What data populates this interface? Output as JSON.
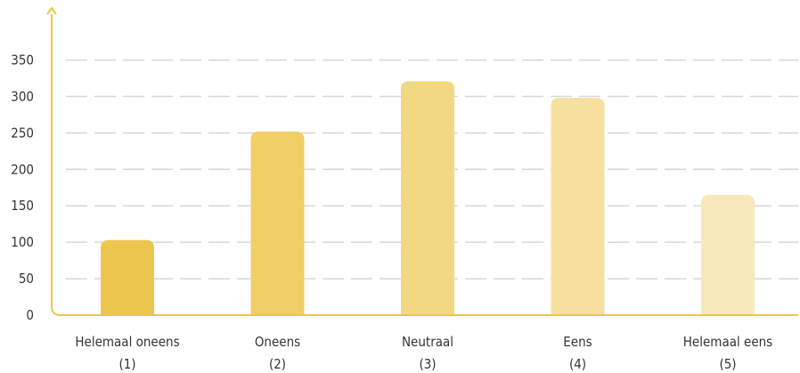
{
  "chart_data": {
    "type": "bar",
    "categories": [
      [
        "Helemaal oneens",
        "(1)"
      ],
      [
        "Oneens",
        "(2)"
      ],
      [
        "Neutraal",
        "(3)"
      ],
      [
        "Eens",
        "(4)"
      ],
      [
        "Helemaal eens",
        "(5)"
      ]
    ],
    "values": [
      103,
      252,
      321,
      298,
      165
    ],
    "colors": [
      "#edc64f",
      "#f0cf67",
      "#f3d883",
      "#f5e09f",
      "#f7e8bb"
    ],
    "axis_color": "#edc64f",
    "title": "",
    "xlabel": "",
    "ylabel": "",
    "ylim": [
      0,
      350
    ],
    "yticks": [
      0,
      50,
      100,
      150,
      200,
      250,
      300,
      350
    ],
    "grid": true
  }
}
